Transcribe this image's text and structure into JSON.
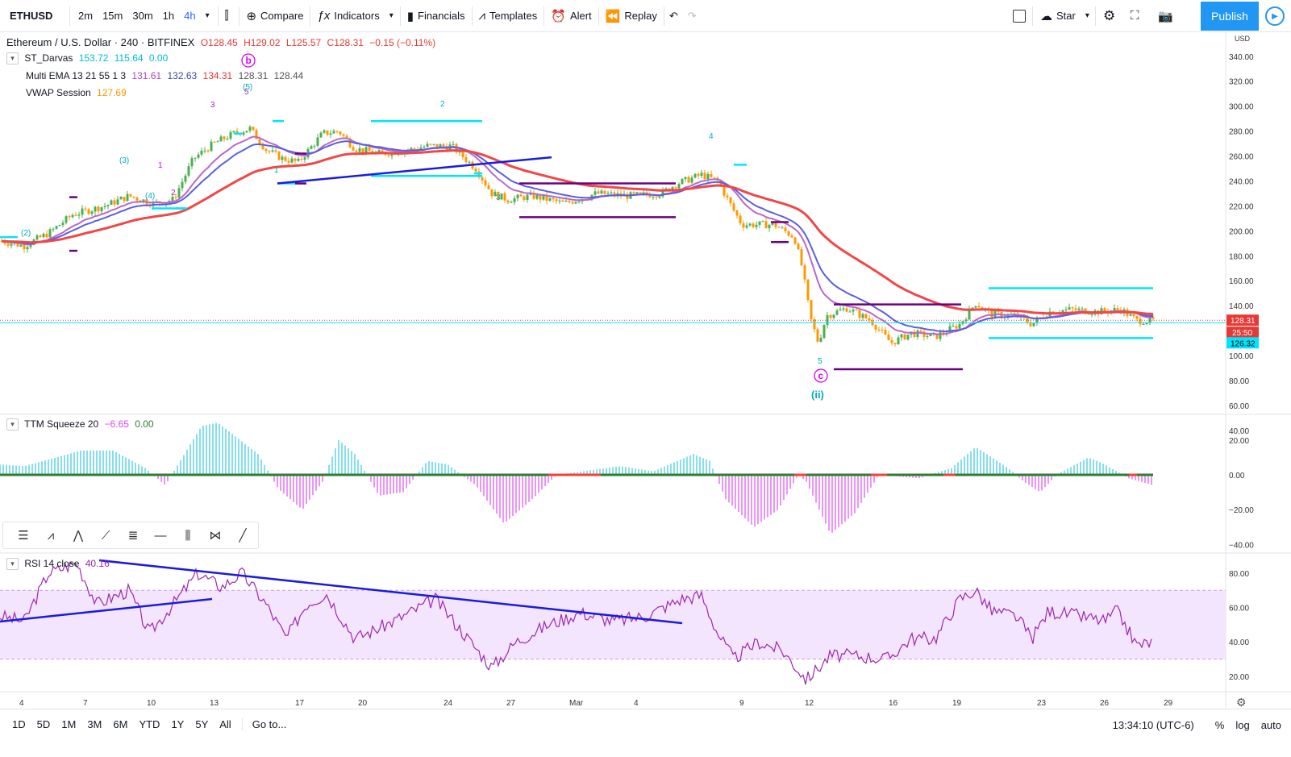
{
  "toolbar": {
    "symbol": "ETHUSD",
    "intervals": [
      "2m",
      "15m",
      "30m",
      "1h",
      "4h"
    ],
    "active_interval": "4h",
    "compare": "Compare",
    "indicators": "Indicators",
    "financials": "Financials",
    "templates": "Templates",
    "alert": "Alert",
    "replay": "Replay",
    "star": "Star",
    "publish": "Publish"
  },
  "main_legend": {
    "title": "Ethereum / U.S. Dollar · 240 · BITFINEX",
    "open": "O128.45",
    "high": "H129.02",
    "low": "L125.57",
    "close": "C128.31",
    "change": "−0.15 (−0.11%)",
    "darvas_name": "ST_Darvas",
    "darvas_v1": "153.72",
    "darvas_v2": "115.64",
    "darvas_v3": "0.00",
    "ema_name": "Multi EMA 13 21 55 1 3",
    "ema_v1": "131.61",
    "ema_v2": "132.63",
    "ema_v3": "134.31",
    "ema_v4": "128.31",
    "ema_v5": "128.44",
    "vwap_name": "VWAP Session",
    "vwap_v": "127.69"
  },
  "ttm_legend": {
    "name": "TTM Squeeze 20",
    "v1": "−6.65",
    "v2": "0.00"
  },
  "rsi_legend": {
    "name": "RSI 14 close",
    "v": "40.16"
  },
  "price_axis": {
    "unit": "USD",
    "ticks": [
      "340.00",
      "320.00",
      "300.00",
      "280.00",
      "260.00",
      "240.00",
      "220.00",
      "200.00",
      "180.00",
      "160.00",
      "140.00",
      "120.00",
      "100.00",
      "80.00",
      "60.00",
      "40.00"
    ],
    "last_price": "128.31",
    "countdown": "25:50",
    "darvas_low": "126.32"
  },
  "ttm_axis": {
    "ticks": [
      "20.00",
      "0.00",
      "−20.00",
      "−40.00"
    ]
  },
  "rsi_axis": {
    "ticks": [
      "80.00",
      "60.00",
      "40.00",
      "20.00"
    ]
  },
  "time_axis": {
    "labels": [
      "4",
      "7",
      "10",
      "13",
      "17",
      "20",
      "24",
      "27",
      "Mar",
      "4",
      "9",
      "12",
      "16",
      "19",
      "23",
      "26",
      "29"
    ]
  },
  "waves": {
    "b": "b",
    "c": "c",
    "ii": "(ii)",
    "w5_top": "5",
    "w5_paren": "(5)",
    "w3_top": "3",
    "w3p": "(3)",
    "w4p": "(4)",
    "w2p": "(2)",
    "w1a": "1",
    "w2a": "2",
    "w1b": "1",
    "w2b": "2",
    "w3b": "3",
    "w4b": "4",
    "w5b": "5"
  },
  "bottombar": {
    "ranges": [
      "1D",
      "5D",
      "1M",
      "3M",
      "6M",
      "YTD",
      "1Y",
      "5Y",
      "All"
    ],
    "goto": "Go to...",
    "time": "13:34:10 (UTC-6)",
    "percent": "%",
    "log": "log",
    "auto": "auto"
  },
  "colors": {
    "ema13": "#ba68c8",
    "ema21": "#5a5fe0",
    "ema55": "#f04747",
    "darvas": "#00e5ff",
    "up": "#4caf50",
    "down": "#ff9800",
    "trend": "#1a1ae0",
    "box": "#6a0080",
    "rsi": "#9c27b0"
  }
}
